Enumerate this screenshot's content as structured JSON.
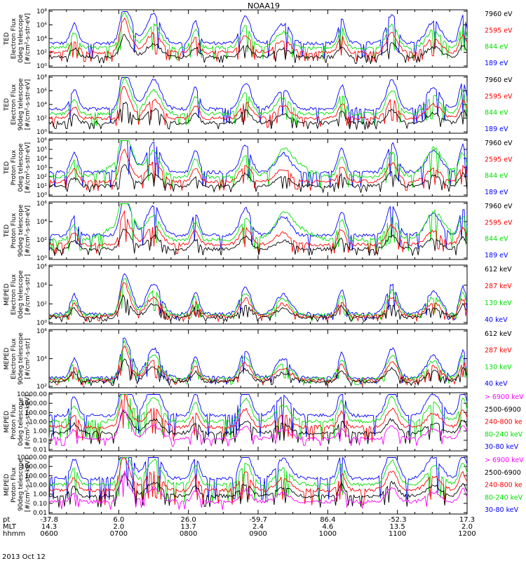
{
  "title": "NOAA19",
  "date_label": "2013 Oct 12",
  "colors": {
    "black": "#000000",
    "red": "#ff0000",
    "green": "#00e000",
    "blue": "#0000ff",
    "magenta": "#ff00ff"
  },
  "chart_data": {
    "type": "line",
    "x_axis": {
      "row_labels": [
        "pt",
        "MLT",
        "hhmm"
      ],
      "ticks": [
        {
          "pt": "-37.8",
          "mlt": "14.3",
          "hhmm": "0600"
        },
        {
          "pt": "6.0",
          "mlt": "2.0",
          "hhmm": "0700"
        },
        {
          "pt": "26.0",
          "mlt": "13.7",
          "hhmm": "0800"
        },
        {
          "pt": "-59.7",
          "mlt": "2.4",
          "hhmm": "0900"
        },
        {
          "pt": "86.4",
          "mlt": "4.6",
          "hhmm": "1000"
        },
        {
          "pt": "-52.3",
          "mlt": "13.5",
          "hhmm": "1100"
        },
        {
          "pt": "17.3",
          "mlt": "2.0",
          "hhmm": "1200"
        }
      ]
    },
    "panels": [
      {
        "instrument": "TED",
        "ylabel": [
          "TED",
          "Electron Flux",
          "0deg telescope",
          "[#/cm²-s-str-eV]"
        ],
        "scale": "log",
        "ytick_labels": [
          "10⁰",
          "10²",
          "10⁴",
          "10⁶",
          "10⁸"
        ],
        "legend": [
          {
            "text": "7960 eV",
            "color": "black"
          },
          {
            "text": "2595 eV",
            "color": "red"
          },
          {
            "text": "844 eV",
            "color": "green"
          },
          {
            "text": "189 eV",
            "color": "blue"
          }
        ]
      },
      {
        "instrument": "TED",
        "ylabel": [
          "TED",
          "Electron Flux",
          "90deg telescope",
          "[#/cm²-s-str-eV]"
        ],
        "scale": "log",
        "ytick_labels": [
          "10⁰",
          "10²",
          "10⁴",
          "10⁶",
          "10⁸"
        ],
        "legend": [
          {
            "text": "7960 eV",
            "color": "black"
          },
          {
            "text": "2595 eV",
            "color": "red"
          },
          {
            "text": "844 eV",
            "color": "green"
          },
          {
            "text": "189 eV",
            "color": "blue"
          }
        ]
      },
      {
        "instrument": "TED",
        "ylabel": [
          "TED",
          "Proton Flux",
          "0deg telescope",
          "[#/cm²-s-str-eV]"
        ],
        "scale": "log",
        "ytick_labels": [
          "10⁰",
          "10¹",
          "10²",
          "10³",
          "10⁴",
          "10⁵",
          "10⁶"
        ],
        "legend": [
          {
            "text": "7960 eV",
            "color": "black"
          },
          {
            "text": "2595 eV",
            "color": "red"
          },
          {
            "text": "844 eV",
            "color": "green"
          },
          {
            "text": "189 eV",
            "color": "blue"
          }
        ]
      },
      {
        "instrument": "TED",
        "ylabel": [
          "TED",
          "Proton Flux",
          "90deg telescope",
          "[#/cm²-s-str-eV]"
        ],
        "scale": "log",
        "ytick_labels": [
          "10⁰",
          "10²",
          "10⁴",
          "10⁶"
        ],
        "legend": [
          {
            "text": "7960 eV",
            "color": "black"
          },
          {
            "text": "2595 eV",
            "color": "red"
          },
          {
            "text": "844 eV",
            "color": "green"
          },
          {
            "text": "189 eV",
            "color": "blue"
          }
        ]
      },
      {
        "instrument": "MEPED",
        "ylabel": [
          "MEPED",
          "Electron Flux",
          "0deg telescope",
          "[#/cm²-s-str]"
        ],
        "scale": "log",
        "ytick_labels": [
          "10⁰",
          "10²",
          "10⁴",
          "10⁶"
        ],
        "legend": [
          {
            "text": "612 keV",
            "color": "black"
          },
          {
            "text": "287 keV",
            "color": "red"
          },
          {
            "text": "130 keV",
            "color": "green"
          },
          {
            "text": "40 keV",
            "color": "blue"
          }
        ]
      },
      {
        "instrument": "MEPED",
        "ylabel": [
          "MEPED",
          "Electron Flux",
          "90deg telescope",
          "[#/cm²-s-str]"
        ],
        "scale": "log",
        "ytick_labels": [
          "10²",
          "10⁴",
          "10⁶"
        ],
        "legend": [
          {
            "text": "612 keV",
            "color": "black"
          },
          {
            "text": "287 keV",
            "color": "red"
          },
          {
            "text": "130 keV",
            "color": "green"
          },
          {
            "text": "40 keV",
            "color": "blue"
          }
        ]
      },
      {
        "instrument": "MEPED",
        "ylabel": [
          "MEPED",
          "Proton Flux",
          "0deg telescope",
          "[#/cm²-s-str-keV]"
        ],
        "scale": "log",
        "ytick_labels": [
          "0.01",
          "0.10",
          "1.00",
          "10.00",
          "100.00",
          "1000.00",
          "10000.00"
        ],
        "legend": [
          {
            "text": "> 6900 keV",
            "color": "magenta"
          },
          {
            "text": "2500-6900",
            "color": "black"
          },
          {
            "text": "240-800 ke",
            "color": "red"
          },
          {
            "text": "80-240 keV",
            "color": "green"
          },
          {
            "text": "30-80 keV",
            "color": "blue"
          }
        ]
      },
      {
        "instrument": "MEPED",
        "ylabel": [
          "MEPED",
          "Proton Flux",
          "90deg telescope",
          "[#/cm²-s-str-keV]"
        ],
        "scale": "log",
        "ytick_labels": [
          "0.01",
          "0.10",
          "1.00",
          "10.00",
          "100.00",
          "1000.00",
          "10000.00"
        ],
        "legend": [
          {
            "text": "> 6900 keV",
            "color": "magenta"
          },
          {
            "text": "2500-6900",
            "color": "black"
          },
          {
            "text": "240-800 ke",
            "color": "red"
          },
          {
            "text": "80-240 keV",
            "color": "green"
          },
          {
            "text": "30-80 keV",
            "color": "blue"
          }
        ]
      }
    ]
  }
}
